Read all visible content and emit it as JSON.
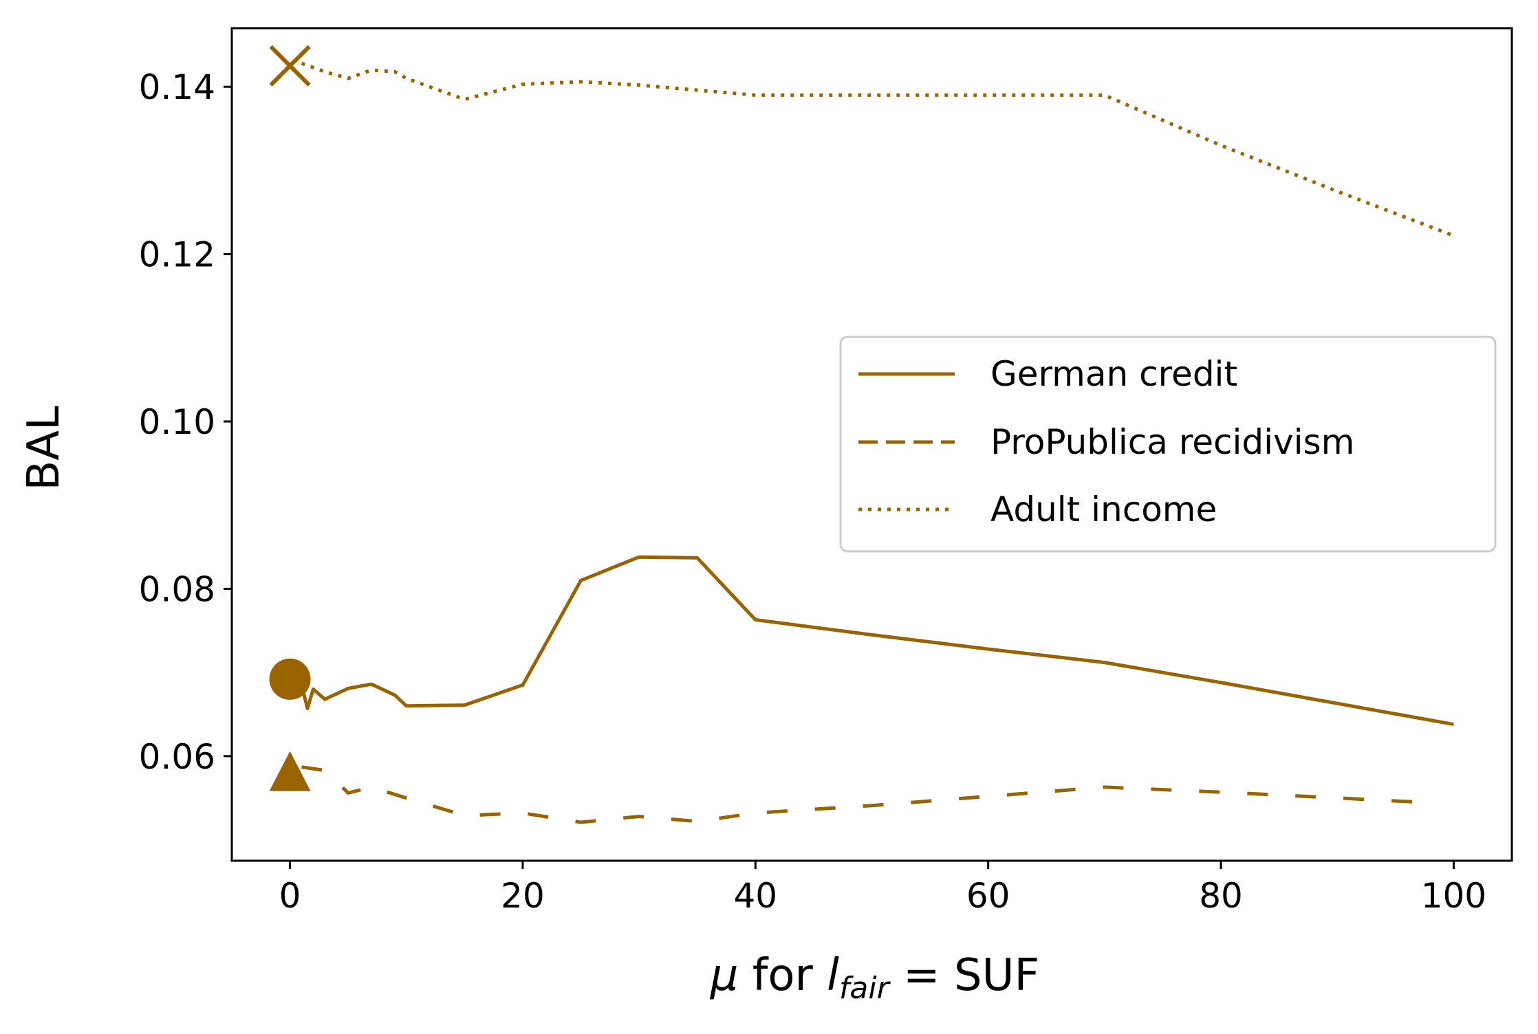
{
  "chart_data": {
    "type": "line",
    "title": "",
    "xlabel": {
      "mu": "μ",
      "for": " for ",
      "l": "l",
      "sub": "fair",
      "eq": " = ",
      "suf": "SUF"
    },
    "ylabel": "BAL",
    "xlim": [
      -5,
      105
    ],
    "ylim": [
      0.0475,
      0.147
    ],
    "xticks": [
      0,
      20,
      40,
      60,
      80,
      100
    ],
    "xtick_labels": [
      "0",
      "20",
      "40",
      "60",
      "80",
      "100"
    ],
    "yticks": [
      0.06,
      0.08,
      0.1,
      0.12,
      0.14
    ],
    "ytick_labels": [
      "0.06",
      "0.08",
      "0.10",
      "0.12",
      "0.14"
    ],
    "grid": false,
    "legend_position": "center-right",
    "color": "#996300",
    "series": [
      {
        "name": "German credit",
        "linestyle": "solid",
        "marker": "circle",
        "marker_point": [
          0,
          0.0692
        ],
        "x": [
          1,
          1.5,
          2,
          3,
          5,
          7,
          9,
          10,
          15,
          20,
          25,
          30,
          35,
          40,
          50,
          60,
          70,
          80,
          90,
          100
        ],
        "y": [
          0.0685,
          0.0657,
          0.068,
          0.0668,
          0.0681,
          0.0686,
          0.0673,
          0.066,
          0.0661,
          0.0685,
          0.081,
          0.0838,
          0.0837,
          0.0763,
          0.0745,
          0.0728,
          0.0712,
          0.0688,
          0.0663,
          0.0638
        ]
      },
      {
        "name": "ProPublica recidivism",
        "linestyle": "dashed",
        "marker": "triangle",
        "marker_point": [
          0,
          0.0578
        ],
        "x": [
          1,
          3,
          5,
          7,
          10,
          15,
          20,
          25,
          30,
          35,
          40,
          50,
          60,
          70,
          80,
          90,
          97
        ],
        "y": [
          0.0587,
          0.0583,
          0.0556,
          0.0563,
          0.055,
          0.0529,
          0.0532,
          0.0521,
          0.0528,
          0.0522,
          0.0532,
          0.0541,
          0.0552,
          0.0563,
          0.0557,
          0.055,
          0.0545
        ]
      },
      {
        "name": "Adult income",
        "linestyle": "dotted",
        "marker": "x",
        "marker_point": [
          0,
          0.1425
        ],
        "x": [
          1,
          3,
          5,
          7,
          9,
          10,
          15,
          20,
          25,
          30,
          35,
          40,
          50,
          60,
          70,
          80,
          90,
          100
        ],
        "y": [
          0.1428,
          0.1418,
          0.141,
          0.142,
          0.1418,
          0.141,
          0.1385,
          0.1403,
          0.1406,
          0.1402,
          0.1396,
          0.139,
          0.139,
          0.139,
          0.139,
          0.133,
          0.1275,
          0.1222
        ]
      }
    ]
  }
}
